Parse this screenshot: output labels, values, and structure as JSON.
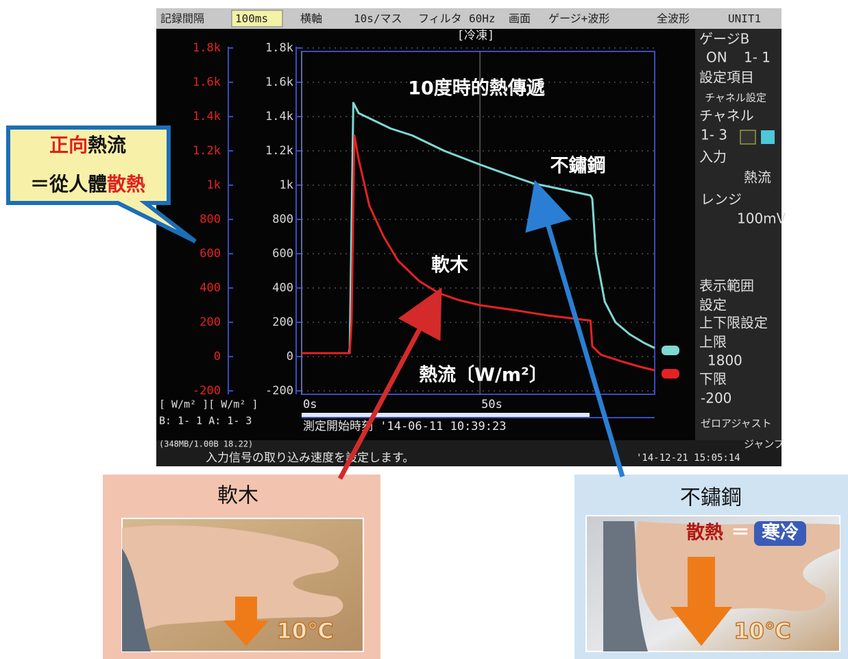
{
  "chart_data": {
    "type": "line",
    "title": "10度時的熱傳遞",
    "y_label": "熱流〔W/m²〕",
    "xlim": [
      0,
      99
    ],
    "ylim": [
      -200,
      1800
    ],
    "xticks": [
      {
        "value": 0,
        "label": "0s"
      },
      {
        "value": 50,
        "label": "50s"
      }
    ],
    "yticks": [
      {
        "value": 1800,
        "label": "1.8k"
      },
      {
        "value": 1600,
        "label": "1.6k"
      },
      {
        "value": 1400,
        "label": "1.4k"
      },
      {
        "value": 1200,
        "label": "1.2k"
      },
      {
        "value": 1000,
        "label": "1k"
      },
      800,
      600,
      400,
      200,
      0,
      -200
    ],
    "grid": true,
    "series": [
      {
        "name": "不鏽鋼",
        "color": "#7fd8d4",
        "x": [
          0,
          13.3,
          13.5,
          14.5,
          16,
          20,
          25,
          31,
          40,
          50,
          58,
          65,
          72,
          81,
          81.5,
          82.5,
          85,
          88,
          92,
          96,
          99
        ],
        "values": [
          20,
          20,
          50,
          1480,
          1420,
          1380,
          1330,
          1290,
          1200,
          1120,
          1060,
          1010,
          980,
          940,
          920,
          600,
          320,
          200,
          130,
          80,
          50
        ]
      },
      {
        "name": "軟木",
        "color": "#e52222",
        "x": [
          0,
          13.5,
          14,
          14.8,
          16,
          19,
          23,
          27,
          33,
          38.5,
          44,
          50,
          60,
          69,
          75,
          81,
          81.5,
          84,
          90,
          95,
          99
        ],
        "values": [
          20,
          20,
          200,
          1290,
          1150,
          880,
          700,
          560,
          440,
          370,
          330,
          300,
          270,
          240,
          225,
          210,
          60,
          10,
          -30,
          -60,
          -80
        ]
      }
    ]
  },
  "screen": {
    "toolbar": [
      "記録間隔",
      "100ms",
      "横軸",
      "10s/マス",
      "フィルタ",
      "60Hz",
      "画面",
      "ゲージ+波形",
      "全波形",
      "UNIT1"
    ],
    "header": "[冷凍]",
    "side_panel": [
      "ゲージB",
      "ON",
      "1- 1",
      "設定項目",
      "チャネル設定",
      "チャネル",
      "1- 3",
      "入力",
      "熱流",
      "レンジ",
      "100mV",
      "表示範囲",
      "設定",
      "上下限設定",
      "上限",
      "1800",
      "下限",
      "-200",
      "ゼロアジャスト",
      "ジャンプ"
    ],
    "axis_units": "[ W/m² ][ W/m² ]",
    "channels": "B: 1- 1 A: 1- 3",
    "start_time": "測定開始時刻 '14-06-11 10:39:23",
    "memory": "(348MB/1.00B 18.22)",
    "status": "入力信号の取り込み速度を設定します。",
    "clock": "'14-12-21 15:05:14"
  },
  "callout": {
    "line1": [
      "正向",
      "熱流"
    ],
    "line2": [
      "＝從人體",
      "散熱"
    ]
  },
  "panels": {
    "cork_temperature": "10℃",
    "steel_heat": "散熱",
    "steel_equals": "＝",
    "steel_cold": "寒冷",
    "steel_temperature": "10℃"
  }
}
